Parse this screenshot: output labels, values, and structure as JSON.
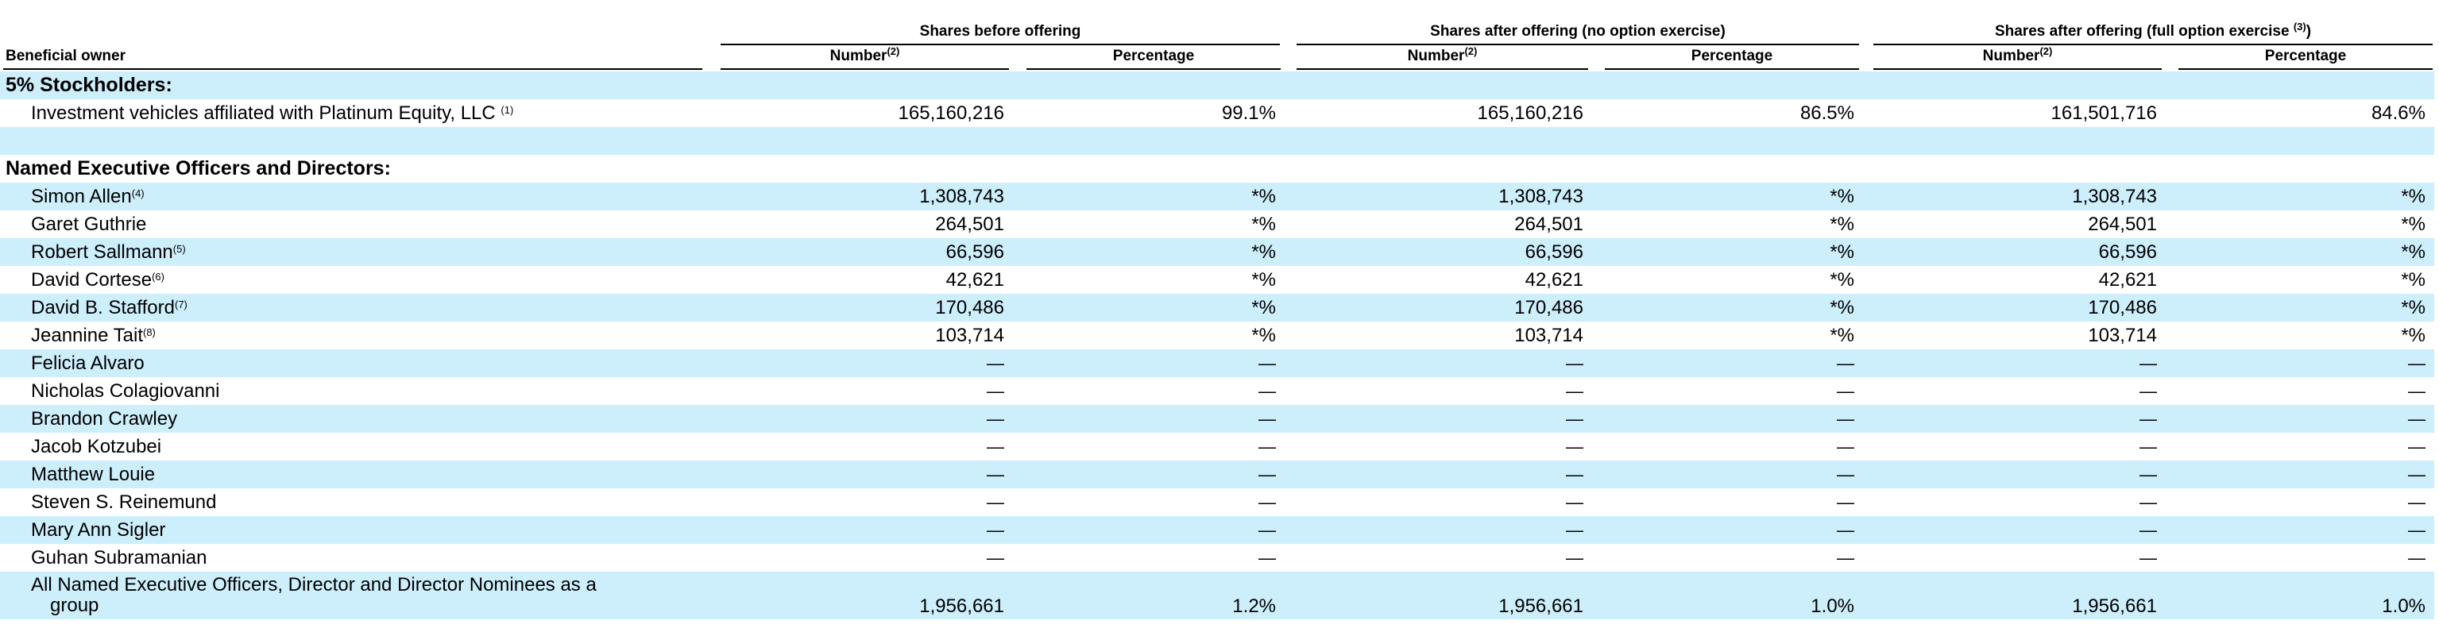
{
  "table": {
    "beneficial_owner_header": "Beneficial owner",
    "groups": [
      {
        "title": "Shares before offering",
        "sup": ""
      },
      {
        "title": "Shares after offering (no option exercise)",
        "sup": ""
      },
      {
        "title": "Shares after offering (full option exercise ",
        "sup": "(3)",
        "tail": ")"
      }
    ],
    "sub_number": "Number",
    "sub_number_sup": "(2)",
    "sub_percentage": "Percentage",
    "section_5pct": "5% Stockholders:",
    "section_neo": "Named Executive Officers and Directors:",
    "platinum": {
      "name": "Investment vehicles affiliated with Platinum Equity, LLC ",
      "sup": "(1)",
      "values": [
        "165,160,216",
        "99.1%",
        "165,160,216",
        "86.5%",
        "161,501,716",
        "84.6%"
      ]
    },
    "rows": [
      {
        "name": "Simon Allen",
        "sup": "(4)",
        "values": [
          "1,308,743",
          "*%",
          "1,308,743",
          "*%",
          "1,308,743",
          "*%"
        ]
      },
      {
        "name": "Garet Guthrie",
        "sup": "",
        "values": [
          "264,501",
          "*%",
          "264,501",
          "*%",
          "264,501",
          "*%"
        ]
      },
      {
        "name": "Robert Sallmann",
        "sup": "(5)",
        "values": [
          "66,596",
          "*%",
          "66,596",
          "*%",
          "66,596",
          "*%"
        ]
      },
      {
        "name": "David Cortese",
        "sup": "(6)",
        "values": [
          "42,621",
          "*%",
          "42,621",
          "*%",
          "42,621",
          "*%"
        ]
      },
      {
        "name": "David B. Stafford",
        "sup": "(7)",
        "values": [
          "170,486",
          "*%",
          "170,486",
          "*%",
          "170,486",
          "*%"
        ]
      },
      {
        "name": "Jeannine Tait",
        "sup": "(8)",
        "values": [
          "103,714",
          "*%",
          "103,714",
          "*%",
          "103,714",
          "*%"
        ]
      },
      {
        "name": "Felicia Alvaro",
        "sup": "",
        "values": [
          "—",
          "—",
          "—",
          "—",
          "—",
          "—"
        ]
      },
      {
        "name": "Nicholas Colagiovanni",
        "sup": "",
        "values": [
          "—",
          "—",
          "—",
          "—",
          "—",
          "—"
        ]
      },
      {
        "name": "Brandon Crawley",
        "sup": "",
        "values": [
          "—",
          "—",
          "—",
          "—",
          "—",
          "—"
        ]
      },
      {
        "name": "Jacob Kotzubei",
        "sup": "",
        "values": [
          "—",
          "—",
          "—",
          "—",
          "—",
          "—"
        ]
      },
      {
        "name": "Matthew Louie",
        "sup": "",
        "values": [
          "—",
          "—",
          "—",
          "—",
          "—",
          "—"
        ]
      },
      {
        "name": "Steven S. Reinemund",
        "sup": "",
        "values": [
          "—",
          "—",
          "—",
          "—",
          "—",
          "—"
        ]
      },
      {
        "name": "Mary Ann Sigler",
        "sup": "",
        "values": [
          "—",
          "—",
          "—",
          "—",
          "—",
          "—"
        ]
      },
      {
        "name": "Guhan Subramanian",
        "sup": "",
        "values": [
          "—",
          "—",
          "—",
          "—",
          "—",
          "—"
        ]
      }
    ],
    "total": {
      "name_line1": "All Named Executive Officers, Director and Director Nominees as a",
      "name_line2": "group",
      "values": [
        "1,956,661",
        "1.2%",
        "1,956,661",
        "1.0%",
        "1,956,661",
        "1.0%"
      ]
    }
  }
}
